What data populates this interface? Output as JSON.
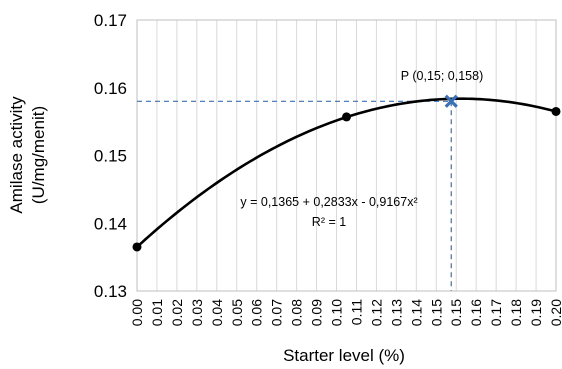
{
  "chart_data": {
    "type": "scatter",
    "title": "",
    "xlabel": "Starter level (%)",
    "ylabel_lines": [
      "Amilase activity",
      "(U/mg/menit)"
    ],
    "xlim": [
      0.0,
      0.2
    ],
    "ylim": [
      0.13,
      0.17
    ],
    "xticks": [
      "0.00",
      "0.01",
      "0.02",
      "0.03",
      "0.04",
      "0.05",
      "0.06",
      "0.07",
      "0.08",
      "0.09",
      "0.10",
      "0.11",
      "0.12",
      "0.13",
      "0.14",
      "0.15",
      "0.15",
      "0.16",
      "0.17",
      "0.18",
      "0.19",
      "0.20"
    ],
    "yticks": [
      "0.13",
      "0.14",
      "0.15",
      "0.16",
      "0.17"
    ],
    "grid": "vertical",
    "series": [
      {
        "marker": "circle",
        "color": "#000000",
        "points": [
          {
            "x": 0.0,
            "y": 0.1365
          },
          {
            "x": 0.1,
            "y": 0.1557
          },
          {
            "x": 0.2,
            "y": 0.1565
          }
        ]
      }
    ],
    "trendline": {
      "type": "polynomial",
      "color": "#000000",
      "coefficients": [
        0.1365,
        0.2833,
        -0.9167
      ],
      "equation": "y = 0,1365 + 0,2833x - 0,9167x²",
      "r2": "R² = 1"
    },
    "optimum": {
      "x": 0.15,
      "y": 0.158,
      "label": "P (0,15; 0,158)",
      "marker": "x",
      "color": "#3b6fb6"
    }
  }
}
